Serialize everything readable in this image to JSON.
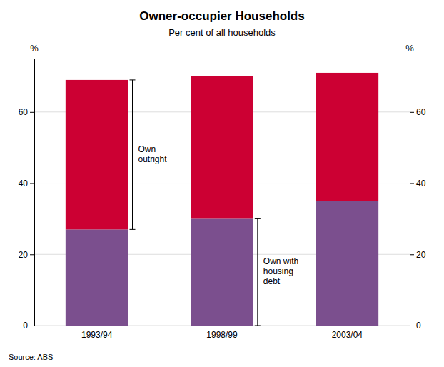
{
  "chart_data": {
    "type": "bar",
    "stacked": true,
    "title": "Owner-occupier Households",
    "subtitle": "Per cent of all households",
    "ylabel": "%",
    "y2label": "%",
    "categories": [
      "1993/94",
      "1998/99",
      "2003/04"
    ],
    "series": [
      {
        "color": "#7B4F8E",
        "values": [
          27,
          30,
          35
        ]
      },
      {
        "color": "#CC0033",
        "values": [
          42,
          40,
          36
        ]
      }
    ],
    "ylim": [
      0,
      75
    ],
    "yticks": [
      0,
      20,
      40,
      60
    ],
    "y2lim": [
      0,
      75
    ],
    "y2ticks": [
      0,
      20,
      40,
      60
    ],
    "grid": true,
    "annotations": [
      "Own\noutright",
      "Own with\nhousing\ndebt"
    ],
    "source": "Source: ABS"
  }
}
